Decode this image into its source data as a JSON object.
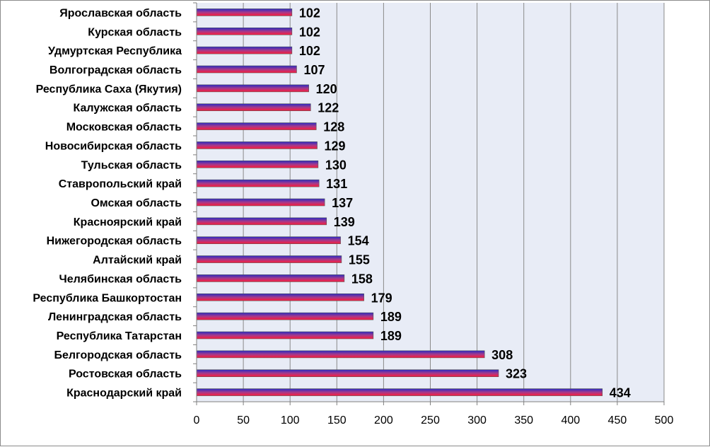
{
  "chart_data": {
    "type": "bar",
    "orientation": "horizontal",
    "title": "",
    "xlabel": "",
    "ylabel": "",
    "categories": [
      "Ярославская область",
      "Курская область",
      "Удмуртская Республика",
      "Волгоградская область",
      "Республика Саха (Якутия)",
      "Калужская область",
      "Московская область",
      "Новосибирская область",
      "Тульская область",
      "Ставропольский край",
      "Омская область",
      "Красноярский край",
      "Нижегородская область",
      "Алтайский край",
      "Челябинская область",
      "Республика Башкортостан",
      "Ленинградская область",
      "Республика Татарстан",
      "Белгородская область",
      "Ростовская область",
      "Краснодарский край"
    ],
    "values": [
      102,
      102,
      102,
      107,
      120,
      122,
      128,
      129,
      130,
      131,
      137,
      139,
      154,
      155,
      158,
      179,
      189,
      189,
      308,
      323,
      434
    ],
    "xlim": [
      0,
      500
    ],
    "xticks": [
      0,
      50,
      100,
      150,
      200,
      250,
      300,
      350,
      400,
      450,
      500
    ],
    "grid": "vertical",
    "legend": "none",
    "colors": {
      "plot_background": "#e8ecf6",
      "gridline": "#8a8a8a",
      "axis": "#7f7f7f",
      "bar_top": "#2a2ac4",
      "bar_mid": "#a33a8c",
      "bar_bottom": "#ff1a3a",
      "bar_edge": "#555555"
    }
  }
}
